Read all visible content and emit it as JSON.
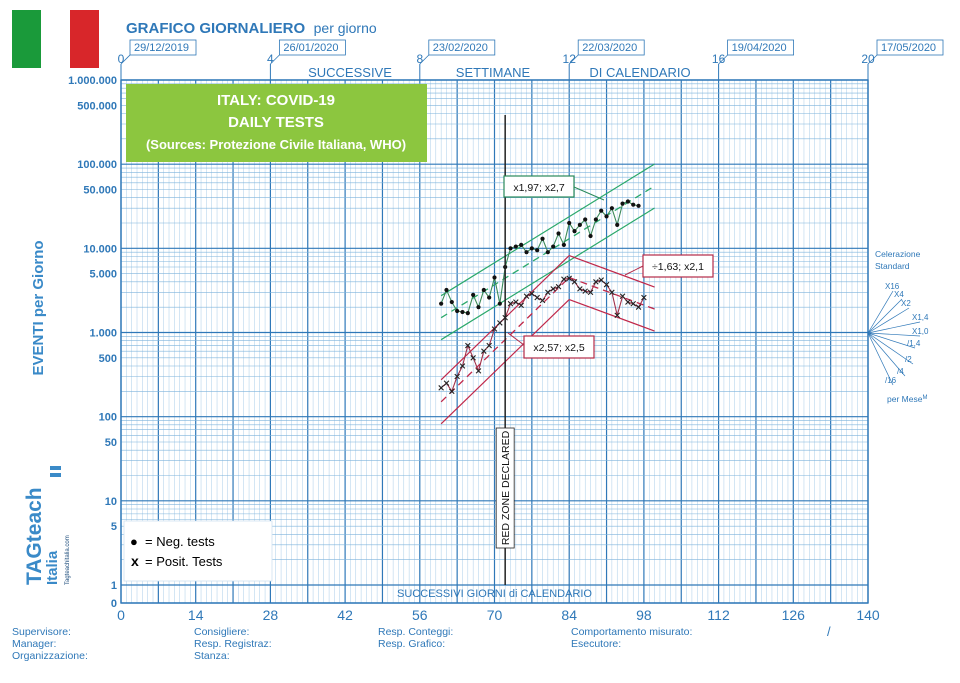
{
  "header": {
    "title": "GRAFICO GIORNALIERO",
    "title_suffix": "per giorno",
    "top_words": [
      "SUCCESSIVE",
      "SETTIMANE",
      "DI CALENDARIO"
    ],
    "week_ticks": [
      "0",
      "4",
      "8",
      "12",
      "16",
      "20"
    ],
    "week_dates": [
      "29/12/2019",
      "26/01/2020",
      "23/02/2020",
      "22/03/2020",
      "19/04/2020",
      "17/05/2020"
    ]
  },
  "infobox": {
    "line1": "ITALY: COVID-19",
    "line2": "DAILY TESTS",
    "line3": "(Sources: Protezione Civile Italiana, WHO)"
  },
  "axes": {
    "ylabel": "EVENTI per Giorno",
    "xlabel": "SUCCESSIVI GIORNI di CALENDARIO",
    "y_ticks": [
      "1.000.000",
      "500.000",
      "100.000",
      "50.000",
      "10.000",
      "5.000",
      "1.000",
      "500",
      "100",
      "50",
      "10",
      "5",
      "1",
      "0"
    ],
    "x_ticks": [
      "0",
      "14",
      "28",
      "42",
      "56",
      "70",
      "84",
      "98",
      "112",
      "126",
      "140"
    ]
  },
  "annotations": {
    "red_zone": "RED ZONE DECLARED",
    "neg_celeration": "x1,97; x2,7",
    "pos_celeration_up": "x2,57; x2,5",
    "pos_celeration_down": "÷1,63; x2,1"
  },
  "celeration_fan": {
    "title1": "Celerazione",
    "title2": "Standard",
    "labels": [
      "X16",
      "X4",
      "X2",
      "X1,4",
      "X1,0",
      "/1,4",
      "/2",
      "/4",
      "/16"
    ],
    "footer": "per Mese",
    "footer_sup": "M"
  },
  "legend": {
    "neg": "= Neg. tests",
    "pos": "= Posit. Tests",
    "neg_symbol": "●",
    "pos_symbol": "x"
  },
  "logo": {
    "brand": "TAGteach",
    "country": "Italia",
    "url": "Tagteachitalia.com"
  },
  "footer": {
    "col1": [
      "Supervisore:",
      "Manager:",
      "Organizzazione:"
    ],
    "col2": [
      "Consigliere:",
      "Resp. Registraz:",
      "Stanza:"
    ],
    "col3": [
      "Resp. Conteggi:",
      "Resp. Grafico:"
    ],
    "col4": [
      "Comportamento misurato:",
      "Esecutore:"
    ],
    "slash": "/"
  },
  "colors": {
    "grid": "#2f78b8",
    "neg_series": "#111111",
    "pos_series": "#8a1f2e",
    "neg_band": "#2aa86a",
    "pos_band": "#c0284a",
    "infobox": "#8cc63f",
    "flag_green": "#1a9a3a",
    "flag_red": "#d8262a"
  },
  "chart_data": {
    "type": "scatter",
    "title": "ITALY: COVID-19 DAILY TESTS",
    "xlabel": "SUCCESSIVI GIORNI di CALENDARIO",
    "ylabel": "EVENTI per Giorno",
    "xlim": [
      0,
      140
    ],
    "ylim": [
      1,
      1000000
    ],
    "yscale": "log",
    "red_zone_day": 72,
    "series": [
      {
        "name": "Neg. tests",
        "marker": "dot",
        "x": [
          60,
          61,
          62,
          63,
          64,
          65,
          66,
          67,
          68,
          69,
          70,
          71,
          72,
          73,
          74,
          75,
          76,
          77,
          78,
          79,
          80,
          81,
          82,
          83,
          84,
          85,
          86,
          87,
          88,
          89,
          90,
          91,
          92,
          93,
          94,
          95,
          96,
          97
        ],
        "y": [
          2200,
          3200,
          2300,
          1800,
          1750,
          1700,
          2800,
          2000,
          3200,
          2600,
          4500,
          2200,
          6000,
          10000,
          10500,
          11000,
          9000,
          10000,
          9500,
          13000,
          9000,
          10500,
          15000,
          11000,
          20000,
          16000,
          19000,
          22000,
          14000,
          22000,
          28000,
          24000,
          30000,
          19000,
          34000,
          36000,
          33000,
          32000
        ]
      },
      {
        "name": "Posit. Tests",
        "marker": "x",
        "x": [
          60,
          61,
          62,
          63,
          64,
          65,
          66,
          67,
          68,
          69,
          70,
          71,
          72,
          73,
          74,
          75,
          76,
          77,
          78,
          79,
          80,
          81,
          82,
          83,
          84,
          85,
          86,
          87,
          88,
          89,
          90,
          91,
          92,
          93,
          94,
          95,
          96,
          97,
          98
        ],
        "y": [
          220,
          250,
          200,
          300,
          400,
          700,
          500,
          350,
          600,
          700,
          1100,
          1300,
          1500,
          2200,
          2300,
          2100,
          2700,
          2900,
          2600,
          2400,
          3000,
          3300,
          3500,
          4300,
          4400,
          4000,
          3300,
          3100,
          3000,
          4000,
          4200,
          3700,
          3000,
          1600,
          2700,
          2300,
          2200,
          2000,
          2600
        ]
      }
    ],
    "celeration_lines": [
      {
        "label": "x1,97; x2,7",
        "series": "Neg. tests",
        "from": [
          60,
          1500
        ],
        "to": [
          100,
          55000
        ]
      },
      {
        "label": "x2,57; x2,5",
        "series": "Posit. Tests",
        "from": [
          60,
          150
        ],
        "to": [
          84,
          4500
        ]
      },
      {
        "label": "÷1,63; x2,1",
        "series": "Posit. Tests",
        "from": [
          84,
          4500
        ],
        "to": [
          100,
          1900
        ]
      }
    ]
  }
}
